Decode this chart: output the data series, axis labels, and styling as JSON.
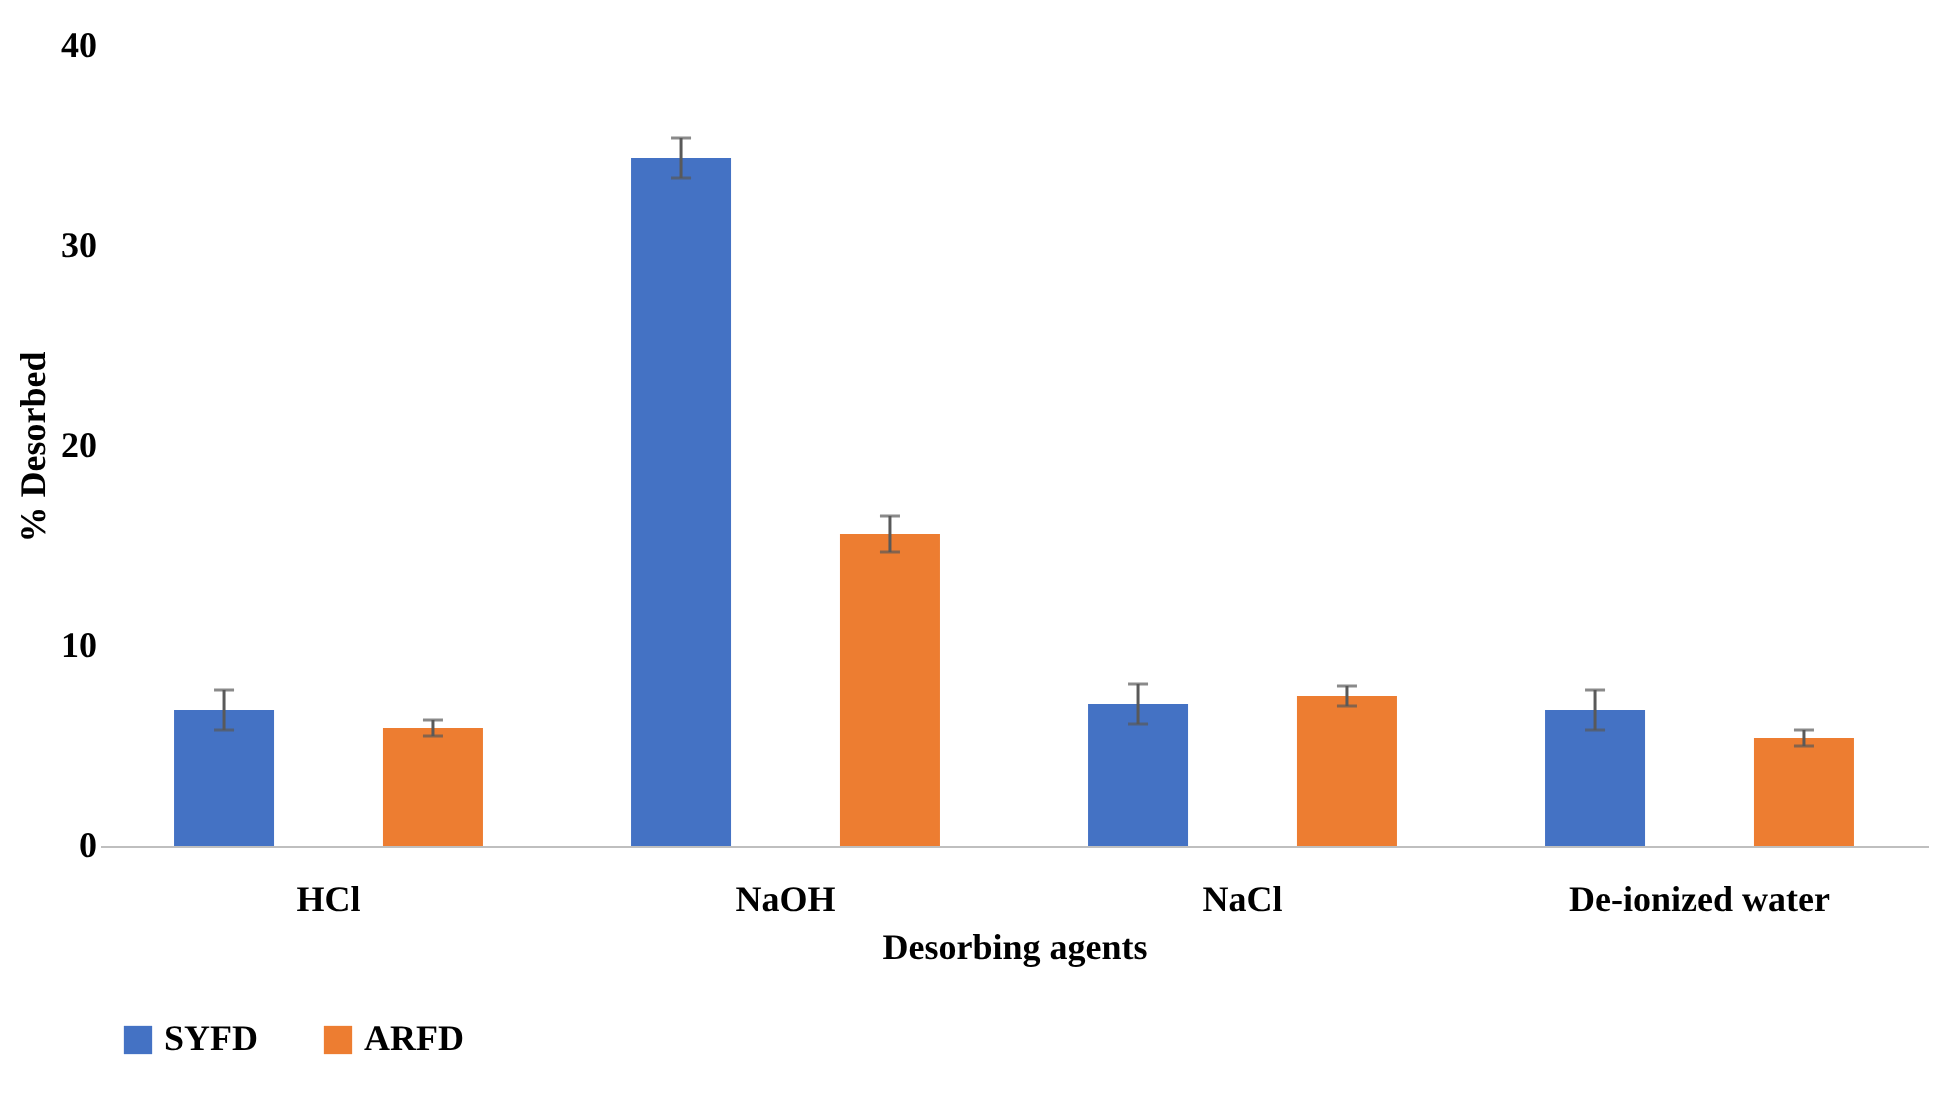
{
  "chart_data": {
    "type": "bar",
    "xlabel": "Desorbing agents",
    "ylabel": "% Desorbed",
    "categories": [
      "HCl",
      "NaOH",
      "NaCl",
      "De-ionized water"
    ],
    "series": [
      {
        "name": "SYFD",
        "color": "#4472c4",
        "values": [
          6.8,
          34.4,
          7.1,
          6.8
        ],
        "errors": [
          1.0,
          1.0,
          1.0,
          1.0
        ]
      },
      {
        "name": "ARFD",
        "color": "#ed7d31",
        "values": [
          5.9,
          15.6,
          7.5,
          5.4
        ],
        "errors": [
          0.4,
          0.9,
          0.5,
          0.4
        ]
      }
    ],
    "ylim": [
      0,
      40
    ],
    "yticks": [
      0,
      10,
      20,
      30,
      40
    ],
    "grid": false,
    "legend": "bottom"
  }
}
